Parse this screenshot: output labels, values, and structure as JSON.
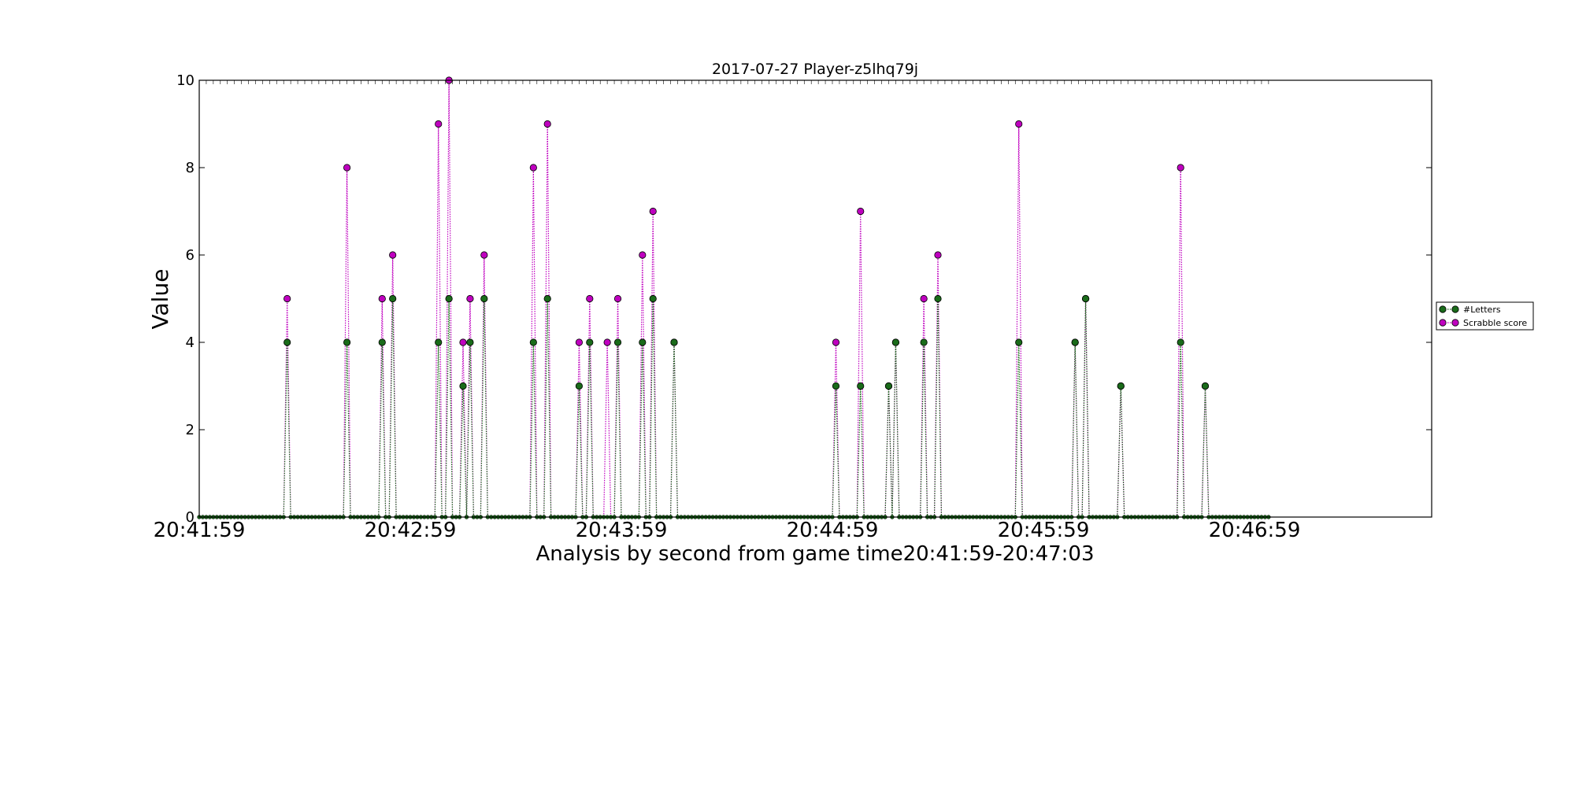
{
  "chart_data": {
    "type": "line",
    "title": "2017-07-27 Player-z5lhq79j",
    "xlabel": "Analysis by second from game time20:41:59-20:47:03",
    "ylabel": "Value",
    "x_tick_labels": [
      "20:41:59",
      "20:42:59",
      "20:43:59",
      "20:44:59",
      "20:45:59",
      "20:46:59"
    ],
    "x_tick_seconds": [
      0,
      60,
      120,
      180,
      240,
      300
    ],
    "x_start": "20:41:59",
    "x_end": "20:47:03",
    "xlim_seconds": [
      0,
      349
    ],
    "ylim": [
      0,
      10
    ],
    "y_ticks": [
      0,
      2,
      4,
      6,
      8,
      10
    ],
    "grid": false,
    "legend_position": "right",
    "series": [
      {
        "name": "#Letters",
        "color": "#1a6b1a",
        "line_style": "dotted",
        "nonzero_points": [
          [
            25,
            4
          ],
          [
            42,
            4
          ],
          [
            52,
            4
          ],
          [
            55,
            5
          ],
          [
            68,
            4
          ],
          [
            71,
            5
          ],
          [
            75,
            3
          ],
          [
            77,
            4
          ],
          [
            81,
            5
          ],
          [
            95,
            4
          ],
          [
            99,
            5
          ],
          [
            108,
            3
          ],
          [
            111,
            4
          ],
          [
            119,
            4
          ],
          [
            119,
            4
          ],
          [
            126,
            4
          ],
          [
            129,
            5
          ],
          [
            135,
            4
          ],
          [
            181,
            3
          ],
          [
            188,
            3
          ],
          [
            196,
            3
          ],
          [
            198,
            4
          ],
          [
            206,
            4
          ],
          [
            210,
            5
          ],
          [
            233,
            4
          ],
          [
            249,
            4
          ],
          [
            252,
            5
          ],
          [
            262,
            3
          ],
          [
            279,
            4
          ],
          [
            286,
            3
          ]
        ]
      },
      {
        "name": "Scrabble score",
        "color": "#bf00bf",
        "line_style": "dotted",
        "nonzero_points": [
          [
            25,
            5
          ],
          [
            42,
            8
          ],
          [
            52,
            5
          ],
          [
            55,
            6
          ],
          [
            68,
            9
          ],
          [
            71,
            10
          ],
          [
            75,
            4
          ],
          [
            77,
            5
          ],
          [
            81,
            6
          ],
          [
            95,
            8
          ],
          [
            99,
            9
          ],
          [
            108,
            4
          ],
          [
            111,
            5
          ],
          [
            116,
            4
          ],
          [
            119,
            5
          ],
          [
            126,
            6
          ],
          [
            129,
            7
          ],
          [
            135,
            4
          ],
          [
            181,
            4
          ],
          [
            188,
            7
          ],
          [
            196,
            3
          ],
          [
            198,
            4
          ],
          [
            206,
            5
          ],
          [
            210,
            6
          ],
          [
            233,
            9
          ],
          [
            249,
            4
          ],
          [
            252,
            5
          ],
          [
            262,
            3
          ],
          [
            279,
            8
          ],
          [
            286,
            3
          ]
        ]
      }
    ]
  }
}
